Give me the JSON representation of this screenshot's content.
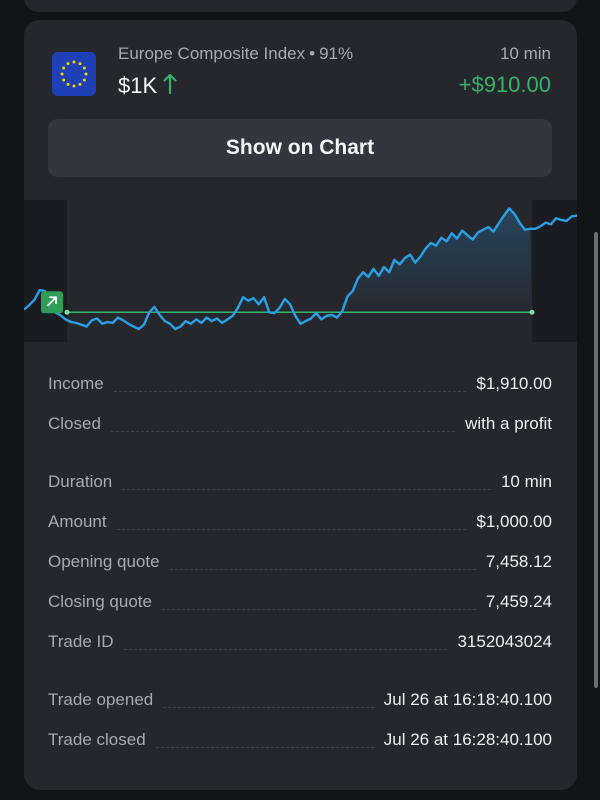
{
  "trade": {
    "asset_name": "Europe Composite Index",
    "payout": "91%",
    "amount_short": "$1K",
    "duration_short": "10 min",
    "profit": "+$910.00",
    "show_chart_label": "Show on Chart",
    "direction_icon": "arrow-up-icon",
    "flag_icon": "eu-flag-icon"
  },
  "colors": {
    "background": "#131417",
    "card": "#25272d",
    "button": "#34363d",
    "profit_green": "#33b36a",
    "chart_line": "#2aa0e6",
    "open_level_line": "#33b36a"
  },
  "chart_data": {
    "type": "line",
    "title": "",
    "xlabel": "",
    "ylabel": "",
    "grid": false,
    "legend": "none",
    "open_level": 7458.12,
    "close_level": 7459.24,
    "y": [
      7458.18,
      7458.28,
      7458.4,
      7458.62,
      7458.6,
      7458.25,
      7458.12,
      7458.05,
      7457.96,
      7457.9,
      7457.88,
      7457.84,
      7457.8,
      7457.94,
      7457.98,
      7457.86,
      7457.9,
      7457.88,
      7458.0,
      7457.94,
      7457.86,
      7457.8,
      7457.74,
      7457.84,
      7458.12,
      7458.24,
      7458.06,
      7457.92,
      7457.86,
      7457.74,
      7457.8,
      7457.92,
      7457.86,
      7457.96,
      7457.88,
      7458.0,
      7457.92,
      7457.98,
      7457.88,
      7457.96,
      7458.04,
      7458.22,
      7458.46,
      7458.38,
      7458.44,
      7458.3,
      7458.46,
      7458.12,
      7458.1,
      7458.22,
      7458.42,
      7458.3,
      7458.04,
      7457.86,
      7457.92,
      7457.98,
      7458.1,
      7457.96,
      7458.04,
      7458.06,
      7458.0,
      7458.14,
      7458.48,
      7458.6,
      7458.88,
      7459.02,
      7458.92,
      7459.1,
      7458.94,
      7459.14,
      7459.02,
      7459.3,
      7459.2,
      7459.34,
      7459.42,
      7459.24,
      7459.38,
      7459.56,
      7459.68,
      7459.62,
      7459.8,
      7459.72,
      7459.9,
      7459.78,
      7459.96,
      7459.86,
      7459.76,
      7459.92,
      7459.98,
      7460.04,
      7459.94,
      7460.12,
      7460.3,
      7460.46,
      7460.34,
      7460.14,
      7459.98,
      7460.0,
      7460.0,
      7460.06,
      7460.14,
      7460.1,
      7460.24,
      7460.2,
      7460.18,
      7460.28,
      7460.3
    ]
  },
  "details": {
    "rows": [
      {
        "label": "Income",
        "value": "$1,910.00"
      },
      {
        "label": "Closed",
        "value": "with a profit"
      },
      {
        "label": "Duration",
        "value": "10 min"
      },
      {
        "label": "Amount",
        "value": "$1,000.00"
      },
      {
        "label": "Opening quote",
        "value": "7,458.12"
      },
      {
        "label": "Closing quote",
        "value": "7,459.24"
      },
      {
        "label": "Trade ID",
        "value": "3152043024"
      },
      {
        "label": "Trade opened",
        "value": "Jul 26 at 16:18:40.100"
      },
      {
        "label": "Trade closed",
        "value": "Jul 26 at 16:28:40.100"
      }
    ]
  }
}
